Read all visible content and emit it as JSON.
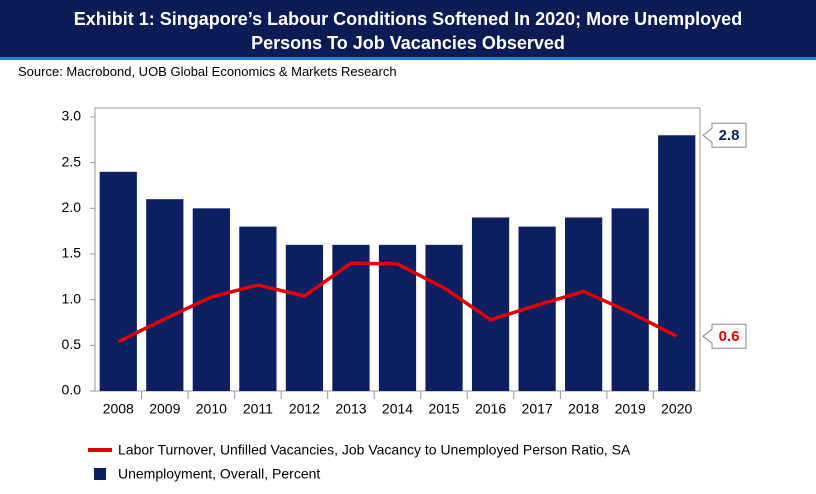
{
  "chart_data": {
    "type": "bar",
    "title": [
      "Exhibit 1: Singapore’s Labour Conditions Softened In 2020; More Unemployed",
      "Persons To Job Vacancies Observed"
    ],
    "source": "Source: Macrobond, UOB Global Economics & Markets Research",
    "categories": [
      "2008",
      "2009",
      "2010",
      "2011",
      "2012",
      "2013",
      "2014",
      "2015",
      "2016",
      "2017",
      "2018",
      "2019",
      "2020"
    ],
    "series": [
      {
        "name": "Labor Turnover, Unfilled Vacancies, Job Vacancy to Unemployed Person Ratio, SA",
        "type": "line",
        "color": "#e00000",
        "values": [
          0.54,
          0.79,
          1.03,
          1.16,
          1.04,
          1.4,
          1.39,
          1.13,
          0.78,
          0.94,
          1.09,
          0.86,
          0.6
        ]
      },
      {
        "name": "Unemployment, Overall, Percent",
        "type": "bar",
        "color": "#0d1f63",
        "values": [
          2.4,
          2.1,
          2.0,
          1.8,
          1.6,
          1.6,
          1.6,
          1.6,
          1.9,
          1.8,
          1.9,
          2.0,
          2.8
        ]
      }
    ],
    "end_labels": true,
    "ylim": [
      0,
      3
    ],
    "yticks": [
      {
        "value": 0,
        "label": "0.0"
      },
      0.5,
      {
        "value": 1,
        "label": "1.0"
      },
      1.5,
      {
        "value": 2,
        "label": "2.0"
      },
      2.5,
      {
        "value": 3,
        "label": "3.0"
      }
    ]
  }
}
